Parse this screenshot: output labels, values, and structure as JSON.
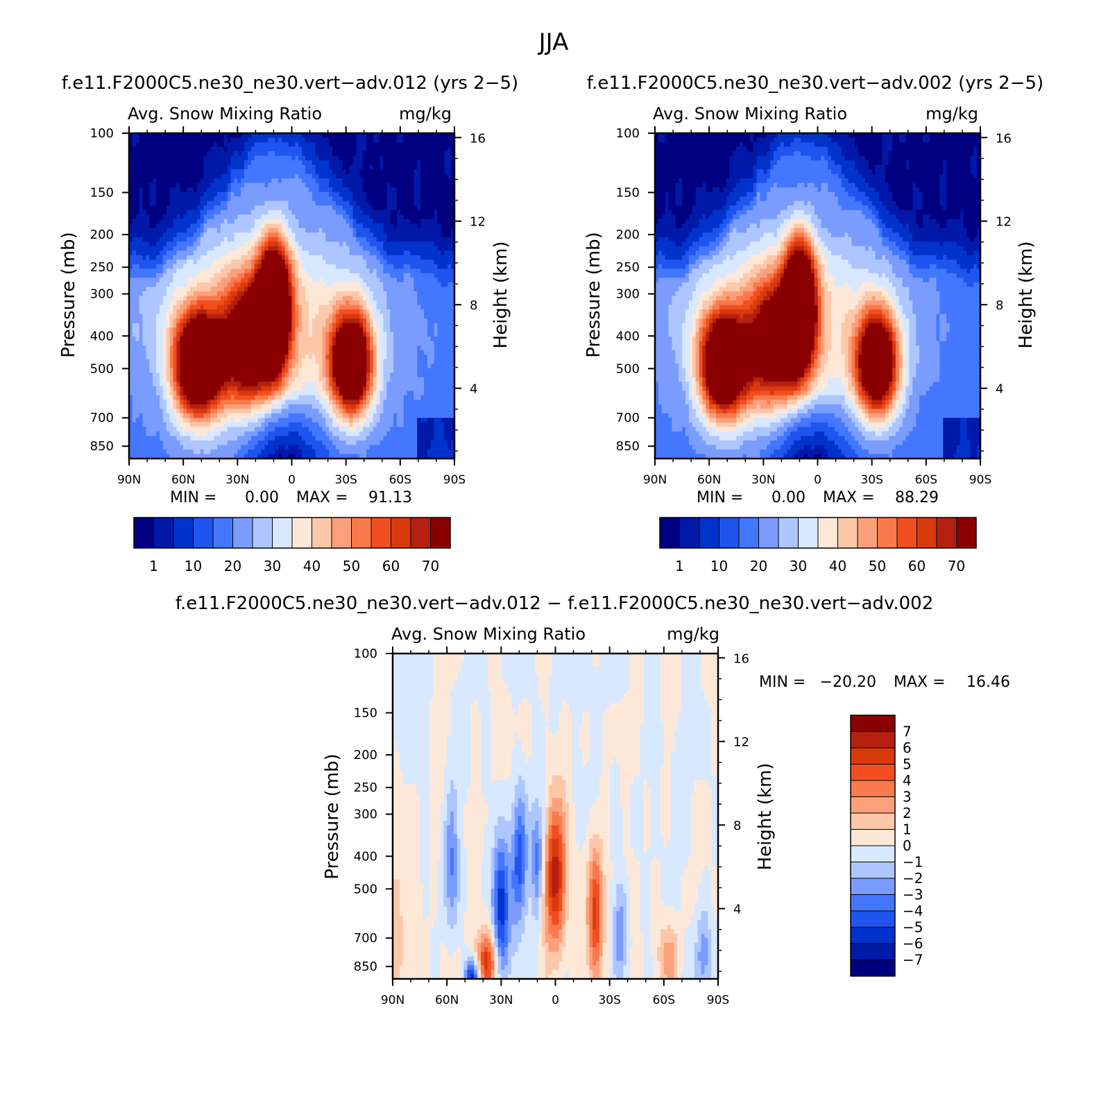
{
  "figure_title": "JJA",
  "colors": {
    "abs_levels": [
      "#000080",
      "#0019a8",
      "#0033cc",
      "#1f55ee",
      "#4477ff",
      "#7a9cff",
      "#aec6ff",
      "#d8e8ff",
      "#fde8d8",
      "#fdc8aa",
      "#fca07c",
      "#f97a4c",
      "#f24e20",
      "#d83a0c",
      "#b52010",
      "#8a0000"
    ],
    "diff_levels": [
      "#000080",
      "#001aa8",
      "#0033cc",
      "#1f55ee",
      "#4477ff",
      "#7a9cff",
      "#aec6ff",
      "#d8e8ff",
      "#fde8d8",
      "#fdc8aa",
      "#fca07c",
      "#f97a4c",
      "#f24e20",
      "#d83a0c",
      "#b52010",
      "#8a0000"
    ]
  },
  "chart_data": [
    {
      "type": "heatmap",
      "panel": "run-012",
      "title": "f.e11.F2000C5.ne30_ne30.vert−adv.012 (yrs 2−5)",
      "left_subtitle": "Avg. Snow Mixing Ratio",
      "right_subtitle": "mg/kg",
      "ylabel": "Pressure (mb)",
      "ylabel_right": "Height (km)",
      "x_ticks": [
        "90N",
        "60N",
        "30N",
        "0",
        "30S",
        "60S",
        "90S"
      ],
      "y_ticks": [
        "100",
        "150",
        "200",
        "250",
        "300",
        "400",
        "500",
        "700",
        "850"
      ],
      "y_ticks_right": [
        "16",
        "12",
        "8",
        "4"
      ],
      "min_label": "MIN =",
      "min_value": "0.00",
      "max_label": "MAX =",
      "max_value": "91.13",
      "colorbar_labels": [
        "1",
        "10",
        "20",
        "30",
        "40",
        "50",
        "60",
        "70"
      ],
      "peak_scale": 1.0
    },
    {
      "type": "heatmap",
      "panel": "run-002",
      "title": "f.e11.F2000C5.ne30_ne30.vert−adv.002 (yrs 2−5)",
      "left_subtitle": "Avg. Snow Mixing Ratio",
      "right_subtitle": "mg/kg",
      "ylabel": "Pressure (mb)",
      "ylabel_right": "Height (km)",
      "x_ticks": [
        "90N",
        "60N",
        "30N",
        "0",
        "30S",
        "60S",
        "90S"
      ],
      "y_ticks": [
        "100",
        "150",
        "200",
        "250",
        "300",
        "400",
        "500",
        "700",
        "850"
      ],
      "y_ticks_right": [
        "16",
        "12",
        "8",
        "4"
      ],
      "min_label": "MIN =",
      "min_value": "0.00",
      "max_label": "MAX =",
      "max_value": "88.29",
      "colorbar_labels": [
        "1",
        "10",
        "20",
        "30",
        "40",
        "50",
        "60",
        "70"
      ],
      "peak_scale": 0.97
    },
    {
      "type": "heatmap",
      "panel": "difference",
      "title": "f.e11.F2000C5.ne30_ne30.vert−adv.012 − f.e11.F2000C5.ne30_ne30.vert−adv.002",
      "left_subtitle": "Avg. Snow Mixing Ratio",
      "right_subtitle": "mg/kg",
      "ylabel": "Pressure (mb)",
      "ylabel_right": "Height (km)",
      "x_ticks": [
        "90N",
        "60N",
        "30N",
        "0",
        "30S",
        "60S",
        "90S"
      ],
      "y_ticks": [
        "100",
        "150",
        "200",
        "250",
        "300",
        "400",
        "500",
        "700",
        "850"
      ],
      "y_ticks_right": [
        "16",
        "12",
        "8",
        "4"
      ],
      "min_label": "MIN =",
      "min_value": "−20.20",
      "max_label": "MAX =",
      "max_value": "16.46",
      "colorbar_labels": [
        "7",
        "6",
        "5",
        "4",
        "3",
        "2",
        "1",
        "0",
        "−1",
        "−2",
        "−3",
        "−4",
        "−5",
        "−6",
        "−7"
      ]
    }
  ]
}
